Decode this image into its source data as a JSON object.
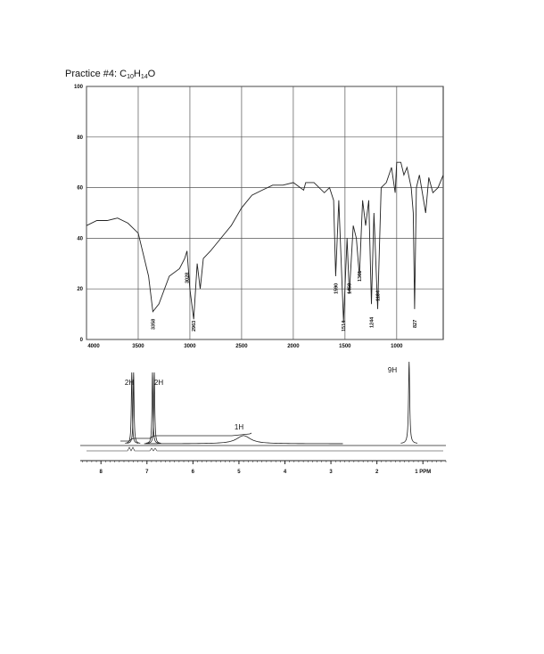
{
  "title": {
    "parts": [
      "Practice #4: C",
      "10",
      "H",
      "14",
      "O"
    ]
  },
  "ir": {
    "xlim": [
      4000,
      550
    ],
    "ylim": [
      0,
      100
    ],
    "xticks": [
      4000,
      3500,
      3000,
      2500,
      2000,
      1500,
      1000
    ],
    "yticks": [
      0,
      20,
      40,
      60,
      80,
      100
    ],
    "grid": true,
    "spectrum": {
      "x": [
        4000,
        3900,
        3800,
        3700,
        3600,
        3500,
        3400,
        3358,
        3300,
        3200,
        3100,
        3050,
        3028,
        3000,
        2963,
        2930,
        2900,
        2870,
        2800,
        2700,
        2600,
        2500,
        2400,
        2300,
        2200,
        2100,
        2000,
        1900,
        1880,
        1800,
        1700,
        1650,
        1610,
        1590,
        1560,
        1514,
        1480,
        1458,
        1420,
        1390,
        1361,
        1330,
        1300,
        1270,
        1244,
        1220,
        1184,
        1150,
        1100,
        1050,
        1015,
        1000,
        960,
        930,
        900,
        860,
        840,
        827,
        810,
        780,
        720,
        690,
        650,
        600,
        550
      ],
      "y": [
        45,
        47,
        47,
        48,
        46,
        42,
        25,
        11,
        14,
        25,
        28,
        32,
        35,
        20,
        8,
        30,
        20,
        32,
        35,
        40,
        45,
        52,
        57,
        59,
        61,
        61,
        62,
        59,
        62,
        62,
        58,
        60,
        55,
        25,
        55,
        7,
        40,
        18,
        45,
        40,
        25,
        55,
        45,
        55,
        14,
        50,
        12,
        60,
        62,
        68,
        58,
        70,
        70,
        65,
        68,
        60,
        50,
        12,
        60,
        65,
        50,
        64,
        58,
        60,
        65
      ]
    },
    "peak_labels": [
      3358,
      2963,
      3028,
      1590,
      1514,
      1458,
      1361,
      1244,
      1184,
      827
    ]
  },
  "nmr": {
    "xlim": [
      8.45,
      0.5
    ],
    "xticks": [
      8,
      7,
      6,
      5,
      4,
      3,
      2,
      {
        "value": 1,
        "label": "1 PPM"
      }
    ],
    "peaks": {
      "ppm": [
        7.33,
        7.29,
        6.88,
        6.84,
        4.9,
        1.3
      ],
      "height": [
        0.87,
        0.87,
        0.87,
        0.87,
        0.1,
        1.0
      ],
      "width": [
        0.012,
        0.012,
        0.012,
        0.012,
        0.18,
        0.015
      ]
    },
    "integrations": [
      "2H",
      "2H",
      "1H",
      "9H"
    ]
  }
}
